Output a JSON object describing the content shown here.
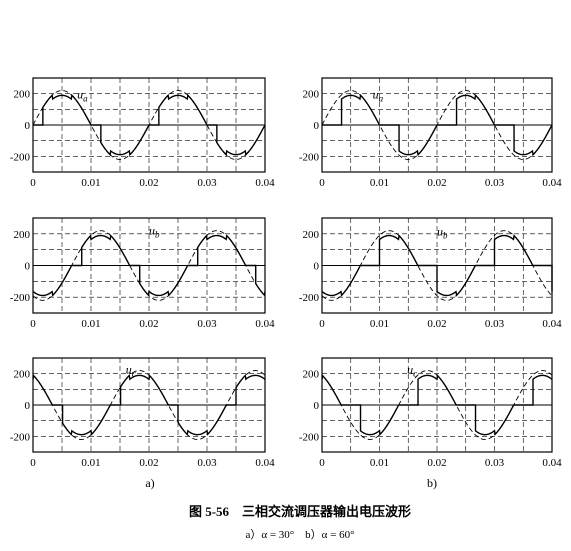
{
  "figure": {
    "caption": "图 5-56　三相交流调压器输出电压波形",
    "subcaption": "a）α = 30°　b）α = 60°"
  },
  "columns": [
    {
      "label": "a)",
      "alpha_deg": 30
    },
    {
      "label": "b)",
      "alpha_deg": 60
    }
  ],
  "chart_data": [
    {
      "type": "line",
      "column": "a)",
      "alpha_deg": 30,
      "phase": "a",
      "series_label": "ua",
      "xlim": [
        0,
        0.04
      ],
      "ylim": [
        -300,
        300
      ],
      "x_ticks": [
        "0",
        "0.01",
        "0.02",
        "0.03",
        "0.04"
      ],
      "y_ticks": [
        "200",
        "0",
        "-200"
      ],
      "series": [
        {
          "style": "solid",
          "amplitude": 220,
          "frequency_hz": 50,
          "phase_shift_deg": 0
        },
        {
          "style": "dashed",
          "amplitude": 220,
          "frequency_hz": 50,
          "phase_shift_deg": 0
        }
      ]
    },
    {
      "type": "line",
      "column": "a)",
      "alpha_deg": 30,
      "phase": "b",
      "series_label": "ub",
      "xlim": [
        0,
        0.04
      ],
      "ylim": [
        -300,
        300
      ],
      "x_ticks": [
        "0",
        "0.01",
        "0.02",
        "0.03",
        "0.04"
      ],
      "y_ticks": [
        "200",
        "0",
        "-200"
      ],
      "series": [
        {
          "style": "solid",
          "amplitude": 220,
          "frequency_hz": 50,
          "phase_shift_deg": -120
        },
        {
          "style": "dashed",
          "amplitude": 220,
          "frequency_hz": 50,
          "phase_shift_deg": -120
        }
      ]
    },
    {
      "type": "line",
      "column": "a)",
      "alpha_deg": 30,
      "phase": "c",
      "series_label": "uc",
      "xlim": [
        0,
        0.04
      ],
      "ylim": [
        -300,
        300
      ],
      "x_ticks": [
        "0",
        "0.01",
        "0.02",
        "0.03",
        "0.04"
      ],
      "y_ticks": [
        "200",
        "0",
        "-200"
      ],
      "series": [
        {
          "style": "solid",
          "amplitude": 220,
          "frequency_hz": 50,
          "phase_shift_deg": 120
        },
        {
          "style": "dashed",
          "amplitude": 220,
          "frequency_hz": 50,
          "phase_shift_deg": 120
        }
      ]
    },
    {
      "type": "line",
      "column": "b)",
      "alpha_deg": 60,
      "phase": "a",
      "series_label": "ua",
      "xlim": [
        0,
        0.04
      ],
      "ylim": [
        -300,
        300
      ],
      "x_ticks": [
        "0",
        "0.01",
        "0.02",
        "0.03",
        "0.04"
      ],
      "y_ticks": [
        "200",
        "0",
        "-200"
      ],
      "series": [
        {
          "style": "solid",
          "amplitude": 220,
          "frequency_hz": 50,
          "phase_shift_deg": 0
        },
        {
          "style": "dashed",
          "amplitude": 220,
          "frequency_hz": 50,
          "phase_shift_deg": 0
        }
      ]
    },
    {
      "type": "line",
      "column": "b)",
      "alpha_deg": 60,
      "phase": "b",
      "series_label": "ub",
      "xlim": [
        0,
        0.04
      ],
      "ylim": [
        -300,
        300
      ],
      "x_ticks": [
        "0",
        "0.01",
        "0.02",
        "0.03",
        "0.04"
      ],
      "y_ticks": [
        "200",
        "0",
        "-200"
      ],
      "series": [
        {
          "style": "solid",
          "amplitude": 220,
          "frequency_hz": 50,
          "phase_shift_deg": -120
        },
        {
          "style": "dashed",
          "amplitude": 220,
          "frequency_hz": 50,
          "phase_shift_deg": -120
        }
      ]
    },
    {
      "type": "line",
      "column": "b)",
      "alpha_deg": 60,
      "phase": "c",
      "series_label": "uc",
      "xlim": [
        0,
        0.04
      ],
      "ylim": [
        -300,
        300
      ],
      "x_ticks": [
        "0",
        "0.01",
        "0.02",
        "0.03",
        "0.04"
      ],
      "y_ticks": [
        "200",
        "0",
        "-200"
      ],
      "series": [
        {
          "style": "solid",
          "amplitude": 220,
          "frequency_hz": 50,
          "phase_shift_deg": 120
        },
        {
          "style": "dashed",
          "amplitude": 220,
          "frequency_hz": 50,
          "phase_shift_deg": 120
        }
      ]
    }
  ]
}
